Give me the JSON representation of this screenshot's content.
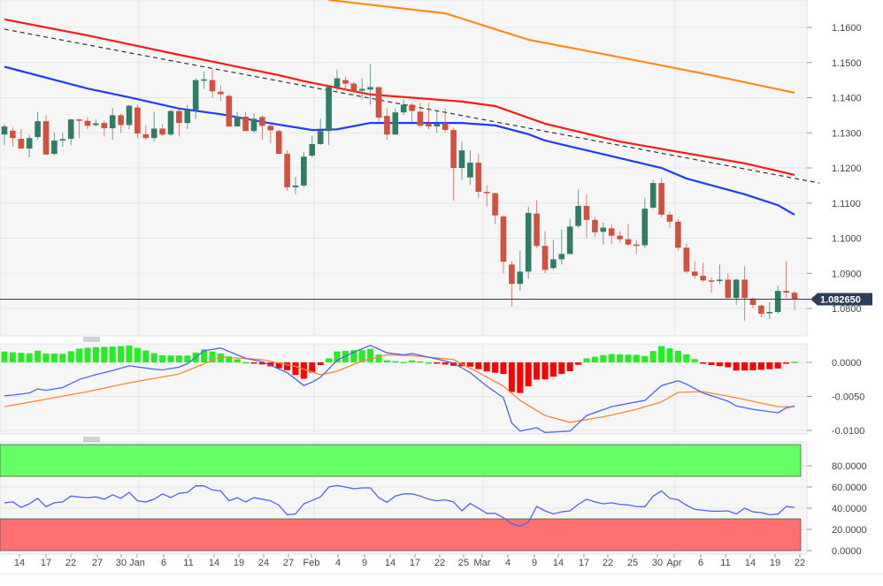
{
  "chart_data": [
    {
      "type": "candlestick",
      "panel": "price",
      "y_ticks": [
        "1.1600",
        "1.1500",
        "1.1400",
        "1.1300",
        "1.1200",
        "1.1100",
        "1.1000",
        "1.0900",
        "1.0800"
      ],
      "ylim": [
        1.07,
        1.1678
      ],
      "last_price_label": "1.082650",
      "last_price": 1.08265,
      "colors": {
        "up": "#2e7d64",
        "down": "#d4503e",
        "ma_fast": "#1f3cff",
        "ma_mid": "#ff1a1a",
        "ma_slow": "#ff8c1a",
        "trendline": "#333333",
        "last_price_line": "#2c3e5c"
      },
      "ohlc": [
        [
          1.1295,
          1.1324,
          1.1265,
          1.1318
        ],
        [
          1.1306,
          1.1315,
          1.126,
          1.1285
        ],
        [
          1.1283,
          1.131,
          1.1255,
          1.1255
        ],
        [
          1.1255,
          1.1295,
          1.123,
          1.1285
        ],
        [
          1.1288,
          1.136,
          1.128,
          1.1333
        ],
        [
          1.1333,
          1.135,
          1.1238,
          1.1238
        ],
        [
          1.124,
          1.13,
          1.1235,
          1.1278
        ],
        [
          1.1278,
          1.13,
          1.126,
          1.1282
        ],
        [
          1.1283,
          1.134,
          1.1265,
          1.1338
        ],
        [
          1.1338,
          1.134,
          1.1285,
          1.1334
        ],
        [
          1.1334,
          1.1345,
          1.131,
          1.132
        ],
        [
          1.1322,
          1.1338,
          1.1318,
          1.1327
        ],
        [
          1.1328,
          1.1335,
          1.129,
          1.1313
        ],
        [
          1.1313,
          1.137,
          1.128,
          1.135
        ],
        [
          1.135,
          1.1355,
          1.13,
          1.1322
        ],
        [
          1.1322,
          1.138,
          1.131,
          1.1377
        ],
        [
          1.1372,
          1.138,
          1.1285,
          1.1298
        ],
        [
          1.1296,
          1.132,
          1.128,
          1.1285
        ],
        [
          1.1285,
          1.136,
          1.1275,
          1.1312
        ],
        [
          1.1312,
          1.1325,
          1.129,
          1.1295
        ],
        [
          1.1295,
          1.1365,
          1.129,
          1.1362
        ],
        [
          1.1362,
          1.1368,
          1.129,
          1.1328
        ],
        [
          1.1328,
          1.138,
          1.131,
          1.1365
        ],
        [
          1.1365,
          1.1455,
          1.134,
          1.145
        ],
        [
          1.145,
          1.1475,
          1.1425,
          1.1452
        ],
        [
          1.145,
          1.148,
          1.14,
          1.1418
        ],
        [
          1.1417,
          1.1435,
          1.139,
          1.141
        ],
        [
          1.1405,
          1.141,
          1.1318,
          1.1318
        ],
        [
          1.1318,
          1.136,
          1.1318,
          1.1346
        ],
        [
          1.1346,
          1.136,
          1.1305,
          1.1305
        ],
        [
          1.1305,
          1.1355,
          1.13,
          1.134
        ],
        [
          1.1345,
          1.135,
          1.128,
          1.132
        ],
        [
          1.132,
          1.1325,
          1.127,
          1.1307
        ],
        [
          1.1305,
          1.131,
          1.124,
          1.124
        ],
        [
          1.124,
          1.125,
          1.1135,
          1.1145
        ],
        [
          1.1145,
          1.1175,
          1.1125,
          1.115
        ],
        [
          1.115,
          1.1245,
          1.1145,
          1.1232
        ],
        [
          1.1235,
          1.1292,
          1.123,
          1.1268
        ],
        [
          1.1268,
          1.134,
          1.1265,
          1.1305
        ],
        [
          1.1305,
          1.1435,
          1.1265,
          1.143
        ],
        [
          1.143,
          1.148,
          1.142,
          1.1455
        ],
        [
          1.145,
          1.146,
          1.142,
          1.144
        ],
        [
          1.144,
          1.1445,
          1.141,
          1.142
        ],
        [
          1.142,
          1.1455,
          1.1395,
          1.1425
        ],
        [
          1.1423,
          1.1495,
          1.138,
          1.143
        ],
        [
          1.143,
          1.1432,
          1.133,
          1.1343
        ],
        [
          1.1348,
          1.137,
          1.128,
          1.1295
        ],
        [
          1.1295,
          1.137,
          1.1295,
          1.1358
        ],
        [
          1.1358,
          1.1395,
          1.135,
          1.138
        ],
        [
          1.138,
          1.1385,
          1.133,
          1.1362
        ],
        [
          1.136,
          1.1385,
          1.132,
          1.132
        ],
        [
          1.1325,
          1.1385,
          1.131,
          1.1318
        ],
        [
          1.1318,
          1.136,
          1.13,
          1.1325
        ],
        [
          1.1328,
          1.137,
          1.13,
          1.1308
        ],
        [
          1.1308,
          1.1315,
          1.1107,
          1.12
        ],
        [
          1.12,
          1.1275,
          1.1165,
          1.125
        ],
        [
          1.1173,
          1.125,
          1.1152,
          1.1215
        ],
        [
          1.1215,
          1.124,
          1.1115,
          1.1132
        ],
        [
          1.1132,
          1.115,
          1.109,
          1.1128
        ],
        [
          1.1128,
          1.113,
          1.104,
          1.1065
        ],
        [
          1.1062,
          1.1065,
          1.09,
          1.0933
        ],
        [
          1.0925,
          1.0935,
          1.0805,
          1.087
        ],
        [
          1.087,
          1.0965,
          1.085,
          1.0905
        ],
        [
          1.0905,
          1.109,
          1.0885,
          1.1072
        ],
        [
          1.107,
          1.1108,
          1.0972,
          1.0978
        ],
        [
          1.0978,
          1.102,
          1.09,
          1.091
        ],
        [
          1.0915,
          1.0995,
          1.091,
          1.094
        ],
        [
          1.094,
          1.1025,
          1.0925,
          1.0955
        ],
        [
          1.0955,
          1.1055,
          1.0955,
          1.1033
        ],
        [
          1.1035,
          1.114,
          1.103,
          1.1092
        ],
        [
          1.1092,
          1.1125,
          1.1,
          1.1052
        ],
        [
          1.1052,
          1.106,
          1.1005,
          1.1017
        ],
        [
          1.1018,
          1.1045,
          1.0982,
          1.103
        ],
        [
          1.1028,
          1.104,
          1.0983,
          1.1007
        ],
        [
          1.1007,
          1.102,
          1.0988,
          1.0997
        ],
        [
          1.0997,
          1.104,
          1.0978,
          1.0982
        ],
        [
          1.0982,
          1.0995,
          1.0955,
          1.098
        ],
        [
          1.098,
          1.1115,
          1.0972,
          1.1084
        ],
        [
          1.1087,
          1.1165,
          1.1084,
          1.1157
        ],
        [
          1.1157,
          1.117,
          1.106,
          1.1067
        ],
        [
          1.1067,
          1.1075,
          1.103,
          1.1047
        ],
        [
          1.1047,
          1.1055,
          1.0965,
          1.0973
        ],
        [
          1.0973,
          1.0985,
          1.09,
          1.0905
        ],
        [
          1.0905,
          1.0935,
          1.0885,
          1.0893
        ],
        [
          1.0893,
          1.093,
          1.0875,
          1.088
        ],
        [
          1.088,
          1.0888,
          1.0845,
          1.0878
        ],
        [
          1.0878,
          1.0925,
          1.087,
          1.0882
        ],
        [
          1.0882,
          1.09,
          1.0825,
          1.083
        ],
        [
          1.083,
          1.0885,
          1.081,
          1.0882
        ],
        [
          1.0882,
          1.092,
          1.0765,
          1.083
        ],
        [
          1.0828,
          1.0832,
          1.08,
          1.081
        ],
        [
          1.0808,
          1.0812,
          1.0775,
          1.0785
        ],
        [
          1.0787,
          1.0818,
          1.077,
          1.079
        ],
        [
          1.079,
          1.0865,
          1.0785,
          1.085
        ],
        [
          1.085,
          1.0935,
          1.083,
          1.0845
        ],
        [
          1.0845,
          1.085,
          1.0795,
          1.0827
        ]
      ],
      "lines": {
        "ma_fast": [
          [
            0,
            1.1488
          ],
          [
            10,
            1.1426
          ],
          [
            15,
            1.1401
          ],
          [
            21,
            1.1369
          ],
          [
            26,
            1.1353
          ],
          [
            31,
            1.1331
          ],
          [
            37,
            1.1308
          ],
          [
            40,
            1.131
          ],
          [
            44,
            1.1328
          ],
          [
            50,
            1.1328
          ],
          [
            55,
            1.1328
          ],
          [
            59,
            1.1321
          ],
          [
            63,
            1.1296
          ],
          [
            65,
            1.1278
          ],
          [
            70,
            1.125
          ],
          [
            79,
            1.12
          ],
          [
            82,
            1.117
          ],
          [
            89,
            1.1125
          ],
          [
            93,
            1.1094
          ],
          [
            95,
            1.1067
          ]
        ],
        "ma_mid": [
          [
            0,
            1.1623
          ],
          [
            10,
            1.1577
          ],
          [
            21,
            1.1522
          ],
          [
            33,
            1.1464
          ],
          [
            36,
            1.1447
          ],
          [
            44,
            1.1409
          ],
          [
            55,
            1.1389
          ],
          [
            59,
            1.1376
          ],
          [
            65,
            1.1326
          ],
          [
            74,
            1.1275
          ],
          [
            80,
            1.125
          ],
          [
            89,
            1.1213
          ],
          [
            95,
            1.118
          ]
        ],
        "ma_slow": [
          [
            39,
            1.1678
          ],
          [
            53,
            1.164
          ],
          [
            63,
            1.1565
          ],
          [
            74,
            1.1515
          ],
          [
            85,
            1.1464
          ],
          [
            95,
            1.1414
          ]
        ],
        "trendline": [
          [
            0,
            1.1595
          ],
          [
            98,
            1.1157
          ]
        ]
      }
    },
    {
      "type": "macd",
      "panel": "macd",
      "y_ticks": [
        "0.0000",
        "-0.0050",
        "-0.0100"
      ],
      "colors": {
        "macd": "#4a64f0",
        "signal": "#ff8533",
        "hist_up": "#22ee22",
        "hist_down": "#ff0000"
      },
      "macd": [
        [
          0,
          -0.0049
        ],
        [
          1,
          -0.0048
        ],
        [
          3,
          -0.0045
        ],
        [
          4,
          -0.0039
        ],
        [
          5,
          -0.0041
        ],
        [
          7,
          -0.0037
        ],
        [
          9,
          -0.0025
        ],
        [
          11,
          -0.0018
        ],
        [
          13,
          -0.0012
        ],
        [
          15,
          -0.0005
        ],
        [
          18,
          -0.001
        ],
        [
          19,
          -0.0011
        ],
        [
          21,
          -0.0007
        ],
        [
          22,
          -0.0002
        ],
        [
          24,
          0.0017
        ],
        [
          26,
          0.0021
        ],
        [
          29,
          0.0006
        ],
        [
          31,
          0.0001
        ],
        [
          34,
          -0.0015
        ],
        [
          36,
          -0.0034
        ],
        [
          37,
          -0.0029
        ],
        [
          38,
          -0.0022
        ],
        [
          40,
          0.0003
        ],
        [
          42,
          0.0015
        ],
        [
          44,
          0.0025
        ],
        [
          46,
          0.0014
        ],
        [
          48,
          0.0011
        ],
        [
          49,
          0.0013
        ],
        [
          52,
          0.0005
        ],
        [
          54,
          -0.0001
        ],
        [
          56,
          -0.0015
        ],
        [
          58,
          -0.0035
        ],
        [
          60,
          -0.0052
        ],
        [
          61,
          -0.0089
        ],
        [
          62,
          -0.0101
        ],
        [
          64,
          -0.0096
        ],
        [
          65,
          -0.0103
        ],
        [
          68,
          -0.0101
        ],
        [
          70,
          -0.0078
        ],
        [
          73,
          -0.0065
        ],
        [
          76,
          -0.0058
        ],
        [
          77,
          -0.0056
        ],
        [
          79,
          -0.0034
        ],
        [
          81,
          -0.0027
        ],
        [
          82,
          -0.0032
        ],
        [
          84,
          -0.0045
        ],
        [
          87,
          -0.0057
        ],
        [
          88,
          -0.0064
        ],
        [
          90,
          -0.0069
        ],
        [
          93,
          -0.0074
        ],
        [
          94,
          -0.0067
        ],
        [
          95,
          -0.0064
        ]
      ],
      "signal": [
        [
          0,
          -0.0065
        ],
        [
          10,
          -0.0043
        ],
        [
          15,
          -0.003
        ],
        [
          21,
          -0.0017
        ],
        [
          26,
          0.0008
        ],
        [
          31,
          0.0004
        ],
        [
          35,
          -0.0006
        ],
        [
          38,
          -0.0018
        ],
        [
          40,
          -0.0013
        ],
        [
          43,
          0.0002
        ],
        [
          46,
          0.0011
        ],
        [
          49,
          0.001
        ],
        [
          54,
          0.0004
        ],
        [
          57,
          -0.0015
        ],
        [
          60,
          -0.0035
        ],
        [
          62,
          -0.0056
        ],
        [
          65,
          -0.0078
        ],
        [
          68,
          -0.0088
        ],
        [
          72,
          -0.008
        ],
        [
          76,
          -0.0069
        ],
        [
          79,
          -0.0058
        ],
        [
          81,
          -0.0044
        ],
        [
          84,
          -0.0043
        ],
        [
          88,
          -0.0052
        ],
        [
          93,
          -0.0065
        ],
        [
          95,
          -0.0065
        ]
      ]
    },
    {
      "type": "line",
      "panel": "rsi",
      "y_ticks": [
        "80.0000",
        "60.0000",
        "40.0000",
        "20.0000",
        "0.0000"
      ],
      "overbought": 70,
      "oversold": 30,
      "colors": {
        "line": "#4a64f0",
        "overbought_zone": "#66ff66",
        "oversold_zone": "#ff7070"
      },
      "values": [
        45.1,
        45.9,
        40.8,
        44.2,
        49.3,
        41.4,
        45.1,
        45.9,
        51.5,
        50.5,
        49.9,
        50.7,
        48.5,
        52.7,
        49.3,
        54.9,
        47.0,
        45.9,
        48.5,
        53.5,
        50.1,
        54.1,
        54.9,
        61.1,
        61.1,
        57.2,
        56.3,
        47.0,
        49.9,
        45.9,
        49.9,
        48.5,
        47.0,
        42.8,
        33.8,
        34.6,
        44.2,
        47.3,
        50.7,
        60.0,
        61.4,
        60.0,
        58.3,
        59.2,
        59.2,
        49.9,
        45.6,
        51.5,
        53.5,
        53.5,
        51.5,
        48.5,
        47.0,
        47.9,
        45.9,
        37.5,
        44.5,
        40.0,
        35.2,
        35.2,
        31.0,
        25.4,
        23.1,
        26.8,
        41.7,
        37.5,
        34.6,
        36.6,
        37.5,
        43.7,
        48.5,
        45.9,
        44.2,
        45.1,
        43.7,
        43.1,
        41.7,
        41.4,
        51.3,
        56.3,
        49.3,
        47.9,
        42.8,
        38.9,
        38.0,
        37.2,
        37.2,
        37.5,
        34.6,
        40.0,
        36.6,
        35.8,
        33.8,
        34.4,
        41.7,
        40.8
      ]
    }
  ],
  "x_axis": {
    "tick_labels": [
      "14",
      "17",
      "22",
      "27",
      "30",
      "Jan",
      "6",
      "11",
      "14",
      "19",
      "24",
      "27",
      "Feb",
      "4",
      "9",
      "14",
      "17",
      "22",
      "25",
      "Mar",
      "4",
      "9",
      "14",
      "17",
      "22",
      "25",
      "30",
      "Apr",
      "6",
      "11",
      "14",
      "19",
      "22"
    ]
  }
}
